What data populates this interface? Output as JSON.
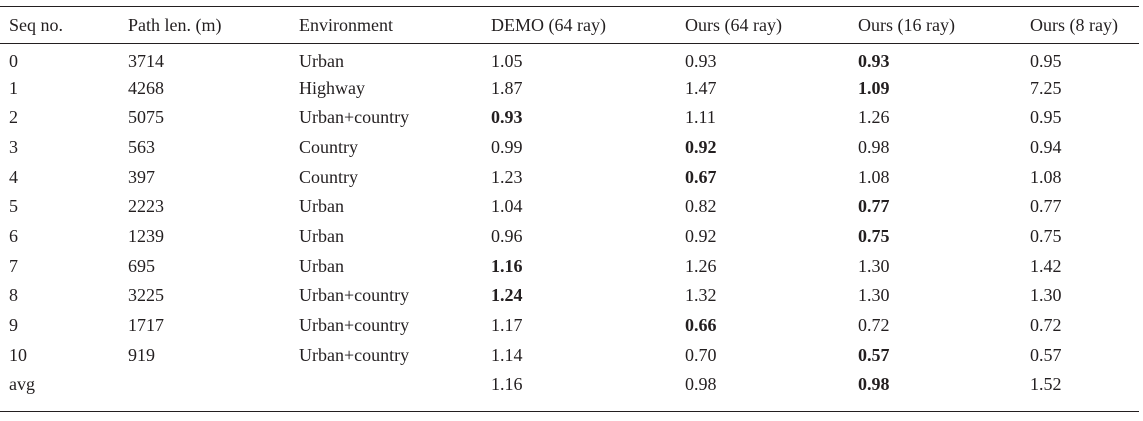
{
  "table": {
    "headers": [
      "Seq no.",
      "Path len. (m)",
      "Environment",
      "DEMO (64 ray)",
      "Ours (64 ray)",
      "Ours (16 ray)",
      "Ours (8 ray)"
    ],
    "rows": [
      {
        "cells": [
          "0",
          "3714",
          "Urban",
          "1.05",
          "0.93",
          "0.93",
          "0.95"
        ],
        "bold_col": 5
      },
      {
        "cells": [
          "1",
          "4268",
          "Highway",
          "1.87",
          "1.47",
          "1.09",
          "7.25"
        ],
        "bold_col": 5
      },
      {
        "cells": [
          "2",
          "5075",
          "Urban+country",
          "0.93",
          "1.11",
          "1.26",
          "0.95"
        ],
        "bold_col": 3
      },
      {
        "cells": [
          "3",
          "563",
          "Country",
          "0.99",
          "0.92",
          "0.98",
          "0.94"
        ],
        "bold_col": 4
      },
      {
        "cells": [
          "4",
          "397",
          "Country",
          "1.23",
          "0.67",
          "1.08",
          "1.08"
        ],
        "bold_col": 4
      },
      {
        "cells": [
          "5",
          "2223",
          "Urban",
          "1.04",
          "0.82",
          "0.77",
          "0.77"
        ],
        "bold_col": 5
      },
      {
        "cells": [
          "6",
          "1239",
          "Urban",
          "0.96",
          "0.92",
          "0.75",
          "0.75"
        ],
        "bold_col": 5
      },
      {
        "cells": [
          "7",
          "695",
          "Urban",
          "1.16",
          "1.26",
          "1.30",
          "1.42"
        ],
        "bold_col": 3
      },
      {
        "cells": [
          "8",
          "3225",
          "Urban+country",
          "1.24",
          "1.32",
          "1.30",
          "1.30"
        ],
        "bold_col": 3
      },
      {
        "cells": [
          "9",
          "1717",
          "Urban+country",
          "1.17",
          "0.66",
          "0.72",
          "0.72"
        ],
        "bold_col": 4
      },
      {
        "cells": [
          "10",
          "919",
          "Urban+country",
          "1.14",
          "0.70",
          "0.57",
          "0.57"
        ],
        "bold_col": 5
      },
      {
        "cells": [
          "avg",
          "",
          "",
          "1.16",
          "0.98",
          "0.98",
          "1.52"
        ],
        "bold_col": 5
      }
    ]
  }
}
